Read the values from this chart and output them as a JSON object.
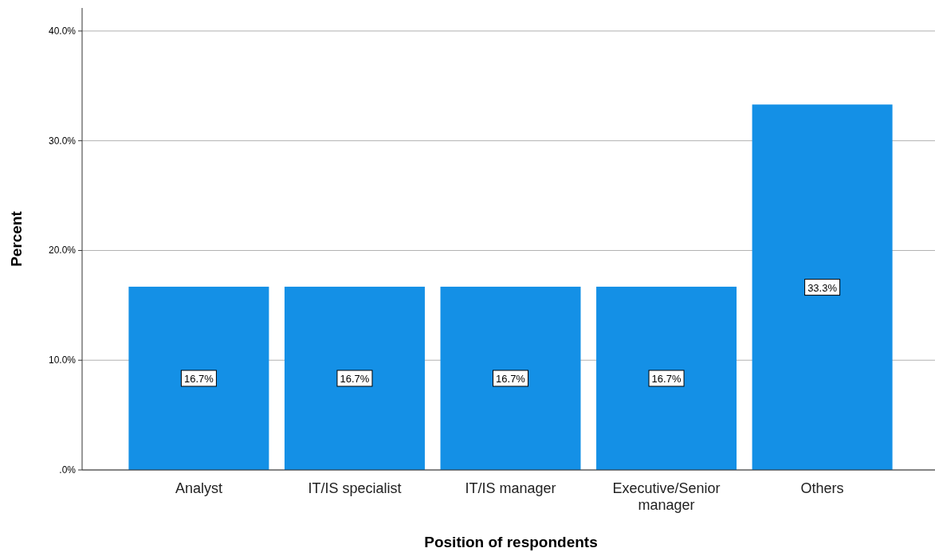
{
  "chart_data": {
    "type": "bar",
    "xlabel": "Position of respondents",
    "ylabel": "Percent",
    "categories": [
      "Analyst",
      "IT/IS specialist",
      "IT/IS manager",
      "Executive/Senior manager",
      "Others"
    ],
    "values": [
      16.7,
      16.7,
      16.7,
      16.7,
      33.3
    ],
    "value_labels": [
      "16.7%",
      "16.7%",
      "16.7%",
      "16.7%",
      "33.3%"
    ],
    "color": "#1490e6",
    "ylim": [
      0,
      42.1
    ],
    "yticks": [
      {
        "value": 0,
        "label": ".0%"
      },
      {
        "value": 10,
        "label": "10.0%"
      },
      {
        "value": 20,
        "label": "20.0%"
      },
      {
        "value": 30,
        "label": "30.0%"
      },
      {
        "value": 40,
        "label": "40.0%"
      }
    ],
    "grid": "y"
  }
}
